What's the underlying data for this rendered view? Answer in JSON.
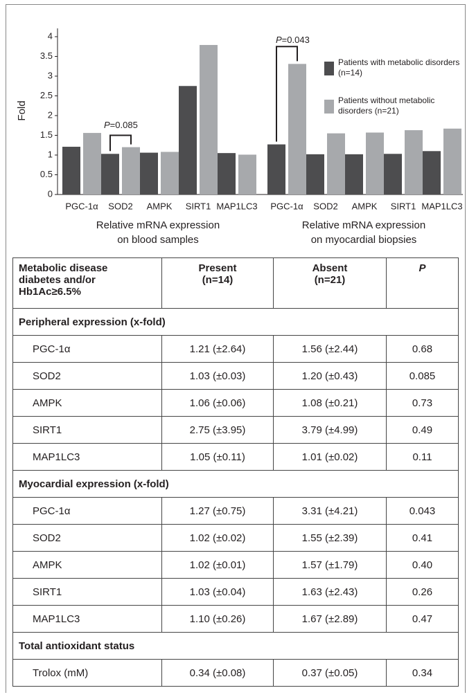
{
  "chart_data": {
    "type": "bar",
    "y_label": "Fold",
    "categories": [
      "PGC-1α",
      "SOD2",
      "AMPK",
      "SIRT1",
      "MAP1LC3",
      "PGC-1α",
      "SOD2",
      "AMPK",
      "SIRT1",
      "MAP1LC3"
    ],
    "group_labels": [
      [
        "Relative mRNA expression",
        "on blood samples"
      ],
      [
        "Relative mRNA expression",
        "on myocardial biopsies"
      ]
    ],
    "series": [
      {
        "name": "Patients with metabolic disorders (n=14)",
        "color": "#4d4d4f",
        "values": [
          1.21,
          1.03,
          1.06,
          2.75,
          1.05,
          1.27,
          1.02,
          1.02,
          1.03,
          1.1
        ]
      },
      {
        "name": "Patients without metabolic disorders (n=21)",
        "color": "#a7a9ac",
        "values": [
          1.56,
          1.2,
          1.08,
          3.79,
          1.01,
          3.31,
          1.55,
          1.57,
          1.63,
          1.67
        ]
      }
    ],
    "annotations": [
      {
        "italic": "P",
        "text": "=0.085"
      },
      {
        "italic": "P",
        "text": "=0.043"
      }
    ],
    "ylim": [
      0,
      4
    ],
    "yticks": [
      0,
      0.5,
      1,
      1.5,
      2,
      2.5,
      3,
      3.5,
      4
    ],
    "legend": "top-right"
  },
  "table": {
    "header": [
      "Metabolic disease diabetes and/or Hb1Ac≥6.5%",
      "Present (n=14)",
      "Absent (n=21)",
      "P"
    ],
    "sections": [
      {
        "title": "Peripheral expression (x-fold)",
        "rows": [
          [
            "PGC-1α",
            "1.21 (±2.64)",
            "1.56 (±2.44)",
            "0.68"
          ],
          [
            "SOD2",
            "1.03 (±0.03)",
            "1.20 (±0.43)",
            "0.085"
          ],
          [
            "AMPK",
            "1.06 (±0.06)",
            "1.08 (±0.21)",
            "0.73"
          ],
          [
            "SIRT1",
            "2.75 (±3.95)",
            "3.79 (±4.99)",
            "0.49"
          ],
          [
            "MAP1LC3",
            "1.05 (±0.11)",
            "1.01 (±0.02)",
            "0.11"
          ]
        ]
      },
      {
        "title": "Myocardial expression (x-fold)",
        "rows": [
          [
            "PGC-1α",
            "1.27 (±0.75)",
            "3.31 (±4.21)",
            "0.043"
          ],
          [
            "SOD2",
            "1.02 (±0.02)",
            "1.55 (±2.39)",
            "0.41"
          ],
          [
            "AMPK",
            "1.02 (±0.01)",
            "1.57 (±1.79)",
            "0.40"
          ],
          [
            "SIRT1",
            "1.03 (±0.04)",
            "1.63 (±2.43)",
            "0.26"
          ],
          [
            "MAP1LC3",
            "1.10 (±0.26)",
            "1.67 (±2.89)",
            "0.47"
          ]
        ]
      },
      {
        "title": "Total antioxidant status",
        "rows": [
          [
            "Trolox (mM)",
            "0.34 (±0.08)",
            "0.37 (±0.05)",
            "0.34"
          ]
        ]
      }
    ]
  }
}
